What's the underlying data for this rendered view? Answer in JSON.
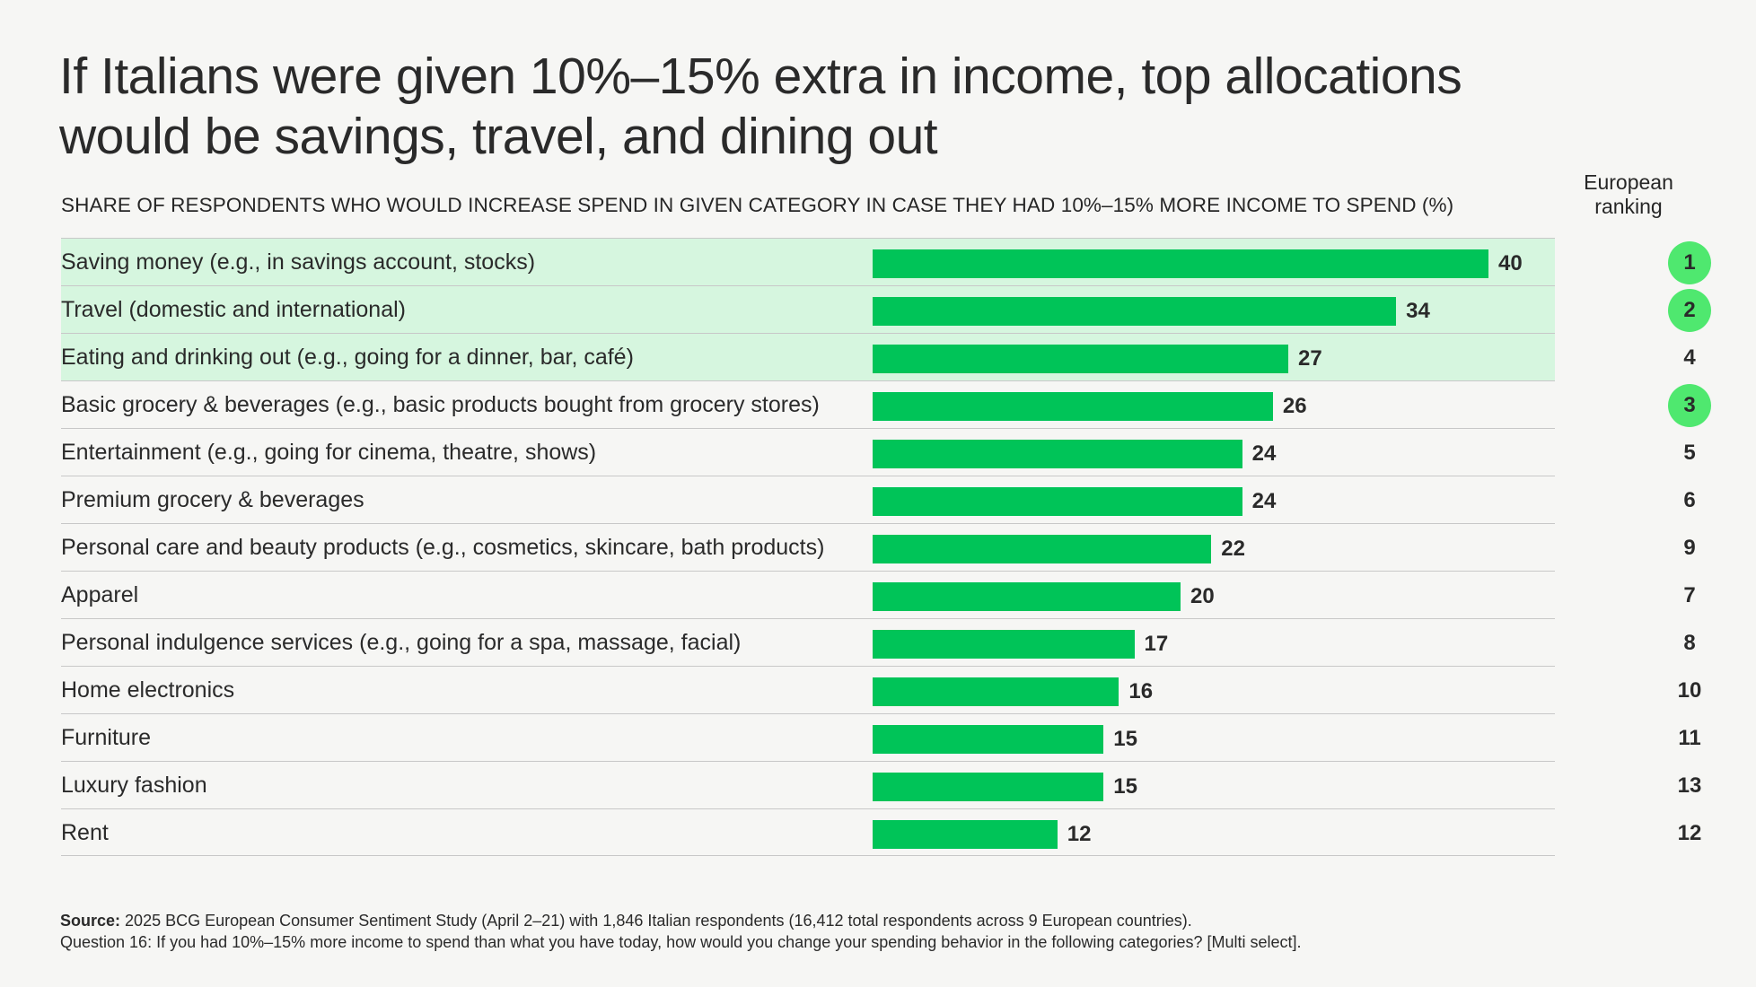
{
  "title": "If Italians were given 10%–15% extra in income, top allocations would be savings, travel, and dining out",
  "subtitle": "SHARE OF RESPONDENTS WHO WOULD INCREASE SPEND IN GIVEN CATEGORY IN CASE THEY HAD 10%–15% MORE INCOME TO SPEND (%)",
  "rank_header": "European ranking",
  "footer": {
    "source_label": "Source:",
    "source_text": "2025 BCG European Consumer Sentiment Study (April 2–21) with 1,846 Italian respondents (16,412 total respondents across 9 European countries).",
    "question_text": "Question 16: If you had 10%–15% more income to spend than what you have today, how would you change your spending behavior in the following categories? [Multi select]."
  },
  "colors": {
    "bar": "#00c458",
    "highlight_row": "#d6f6df",
    "rank_badge": "#4fe86f"
  },
  "chart_data": {
    "type": "bar",
    "orientation": "horizontal",
    "title": "SHARE OF RESPONDENTS WHO WOULD INCREASE SPEND IN GIVEN CATEGORY IN CASE THEY HAD 10%–15% MORE INCOME TO SPEND (%)",
    "xlim": [
      0,
      44
    ],
    "categories": [
      "Saving money (e.g., in savings account, stocks)",
      "Travel (domestic and international)",
      "Eating and drinking out (e.g., going for a dinner, bar, café)",
      "Basic grocery & beverages (e.g., basic products bought from grocery stores)",
      "Entertainment (e.g., going for cinema, theatre, shows)",
      "Premium grocery & beverages",
      "Personal care and beauty products (e.g., cosmetics, skincare, bath products)",
      "Apparel",
      "Personal indulgence services (e.g., going for a spa, massage, facial)",
      "Home electronics",
      "Furniture",
      "Luxury fashion",
      "Rent"
    ],
    "values": [
      40,
      34,
      27,
      26,
      24,
      24,
      22,
      20,
      17,
      16,
      15,
      15,
      12
    ],
    "european_ranking": [
      1,
      2,
      4,
      3,
      5,
      6,
      9,
      7,
      8,
      10,
      11,
      13,
      12
    ],
    "highlighted_rows": [
      true,
      true,
      true,
      false,
      false,
      false,
      false,
      false,
      false,
      false,
      false,
      false,
      false
    ],
    "badged_ranks": [
      true,
      true,
      false,
      true,
      false,
      false,
      false,
      false,
      false,
      false,
      false,
      false,
      false
    ]
  }
}
